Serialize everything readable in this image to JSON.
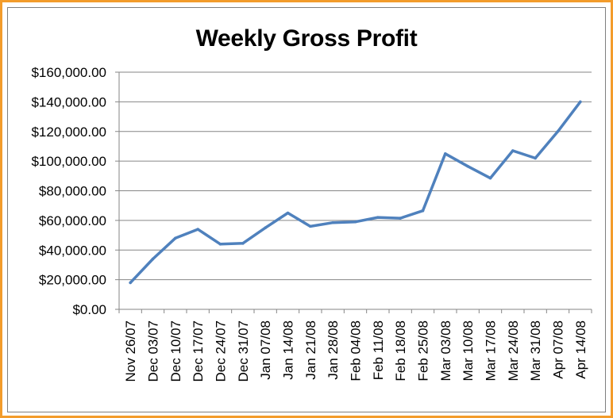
{
  "chart_data": {
    "type": "line",
    "title": "Weekly Gross Profit",
    "xlabel": "",
    "ylabel": "",
    "ylim": [
      0,
      160000
    ],
    "yticks": [
      0,
      20000,
      40000,
      60000,
      80000,
      100000,
      120000,
      140000,
      160000
    ],
    "ytick_labels": [
      "$0.00",
      "$20,000.00",
      "$40,000.00",
      "$60,000.00",
      "$80,000.00",
      "$100,000.00",
      "$120,000.00",
      "$140,000.00",
      "$160,000.00"
    ],
    "grid": true,
    "legend": "none",
    "categories": [
      "Nov 26/07",
      "Dec 03/07",
      "Dec 10/07",
      "Dec 17/07",
      "Dec 24/07",
      "Dec 31/07",
      "Jan 07/08",
      "Jan 14/08",
      "Jan 21/08",
      "Jan 28/08",
      "Feb 04/08",
      "Feb 11/08",
      "Feb 18/08",
      "Feb 25/08",
      "Mar 03/08",
      "Mar 10/08",
      "Mar 17/08",
      "Mar 24/08",
      "Mar 31/08",
      "Apr 07/08",
      "Apr 14/08"
    ],
    "series": [
      {
        "values": [
          18000,
          34000,
          48000,
          54000,
          44000,
          44500,
          55000,
          65000,
          56000,
          58500,
          59000,
          62000,
          61500,
          66500,
          105000,
          96500,
          88500,
          107000,
          102000,
          120000,
          140000
        ],
        "color": "#4f81bd"
      }
    ]
  }
}
